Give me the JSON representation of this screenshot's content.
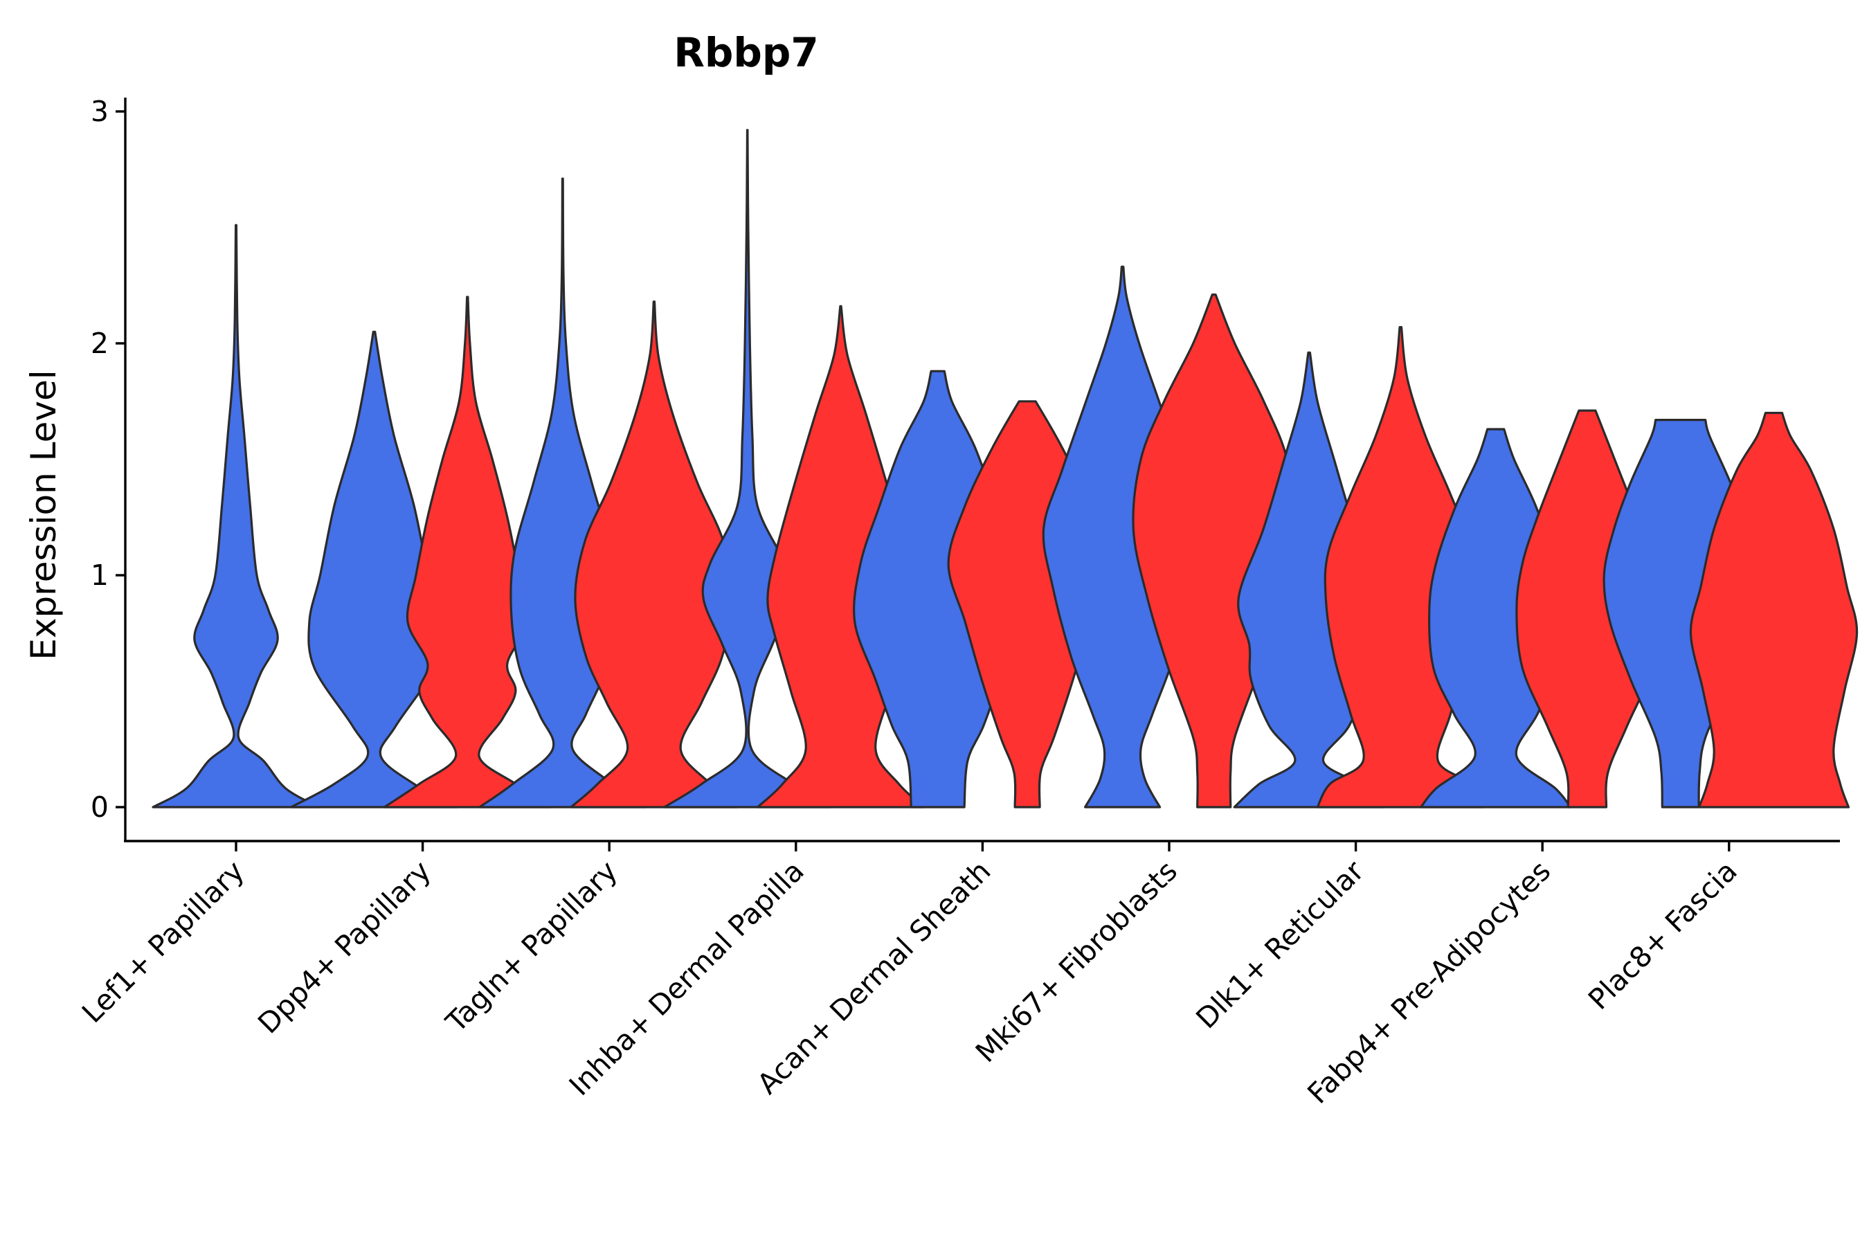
{
  "chart_data": {
    "type": "violin",
    "title": "Rbbp7",
    "xlabel": "",
    "ylabel": "Expression Level",
    "ylim": [
      -0.15,
      3.05
    ],
    "yticks": [
      "0",
      "1",
      "2",
      "3"
    ],
    "legend": "none",
    "colors": {
      "group_a": "#4470E8",
      "group_b": "#FF3232",
      "outline": "#2B2B2B"
    },
    "categories": [
      "Lef1+ Papillary",
      "Dpp4+ Papillary",
      "Tagln+ Papillary",
      "Inhba+ Dermal Papilla",
      "Acan+ Dermal Sheath",
      "Mki67+ Fibroblasts",
      "Dlk1+ Reticular",
      "Fabp4+ Pre-Adipocytes",
      "Plac8+ Fascia"
    ],
    "violins": [
      {
        "category_index": 0,
        "group": "group_a",
        "offset": 0,
        "max": 2.51,
        "profile": [
          [
            0,
            1.0
          ],
          [
            0.08,
            0.6
          ],
          [
            0.2,
            0.33
          ],
          [
            0.3,
            0.03
          ],
          [
            0.45,
            0.16
          ],
          [
            0.58,
            0.3
          ],
          [
            0.72,
            0.5
          ],
          [
            0.85,
            0.39
          ],
          [
            1.0,
            0.25
          ],
          [
            1.3,
            0.17
          ],
          [
            1.6,
            0.1
          ],
          [
            1.85,
            0.04
          ],
          [
            2.1,
            0.015
          ],
          [
            2.51,
            0.003
          ]
        ]
      },
      {
        "category_index": 1,
        "group": "group_a",
        "offset": -0.26,
        "max": 2.05,
        "profile": [
          [
            0,
            1.0
          ],
          [
            0.1,
            0.48
          ],
          [
            0.22,
            0.08
          ],
          [
            0.35,
            0.26
          ],
          [
            0.6,
            0.72
          ],
          [
            0.8,
            0.78
          ],
          [
            1.0,
            0.65
          ],
          [
            1.3,
            0.48
          ],
          [
            1.6,
            0.24
          ],
          [
            1.85,
            0.1
          ],
          [
            2.05,
            0.01
          ]
        ]
      },
      {
        "category_index": 1,
        "group": "group_b",
        "offset": 0.24,
        "max": 2.2,
        "profile": [
          [
            0,
            1.0
          ],
          [
            0.1,
            0.58
          ],
          [
            0.22,
            0.14
          ],
          [
            0.38,
            0.42
          ],
          [
            0.5,
            0.58
          ],
          [
            0.62,
            0.48
          ],
          [
            0.8,
            0.72
          ],
          [
            1.0,
            0.62
          ],
          [
            1.25,
            0.48
          ],
          [
            1.5,
            0.3
          ],
          [
            1.75,
            0.1
          ],
          [
            2.0,
            0.03
          ],
          [
            2.2,
            0.005
          ]
        ]
      },
      {
        "category_index": 2,
        "group": "group_a",
        "offset": -0.25,
        "max": 2.71,
        "profile": [
          [
            0,
            1.0
          ],
          [
            0.1,
            0.6
          ],
          [
            0.25,
            0.12
          ],
          [
            0.4,
            0.28
          ],
          [
            0.6,
            0.52
          ],
          [
            0.85,
            0.62
          ],
          [
            1.1,
            0.58
          ],
          [
            1.4,
            0.35
          ],
          [
            1.7,
            0.13
          ],
          [
            2.0,
            0.04
          ],
          [
            2.3,
            0.01
          ],
          [
            2.71,
            0.003
          ]
        ]
      },
      {
        "category_index": 2,
        "group": "group_b",
        "offset": 0.24,
        "max": 2.18,
        "profile": [
          [
            0,
            1.0
          ],
          [
            0.1,
            0.68
          ],
          [
            0.25,
            0.32
          ],
          [
            0.45,
            0.57
          ],
          [
            0.65,
            0.82
          ],
          [
            0.9,
            0.95
          ],
          [
            1.15,
            0.83
          ],
          [
            1.4,
            0.52
          ],
          [
            1.7,
            0.22
          ],
          [
            1.95,
            0.05
          ],
          [
            2.18,
            0.005
          ]
        ]
      },
      {
        "category_index": 3,
        "group": "group_a",
        "offset": -0.26,
        "max": 2.92,
        "profile": [
          [
            0,
            1.0
          ],
          [
            0.1,
            0.55
          ],
          [
            0.25,
            0.05
          ],
          [
            0.5,
            0.08
          ],
          [
            0.7,
            0.3
          ],
          [
            0.9,
            0.53
          ],
          [
            1.05,
            0.45
          ],
          [
            1.3,
            0.12
          ],
          [
            1.6,
            0.06
          ],
          [
            2.0,
            0.03
          ],
          [
            2.5,
            0.01
          ],
          [
            2.92,
            0.002
          ]
        ]
      },
      {
        "category_index": 3,
        "group": "group_b",
        "offset": 0.24,
        "max": 2.16,
        "profile": [
          [
            0,
            1.0
          ],
          [
            0.1,
            0.7
          ],
          [
            0.25,
            0.42
          ],
          [
            0.5,
            0.6
          ],
          [
            0.75,
            0.8
          ],
          [
            0.9,
            0.88
          ],
          [
            1.1,
            0.78
          ],
          [
            1.4,
            0.55
          ],
          [
            1.7,
            0.3
          ],
          [
            1.95,
            0.08
          ],
          [
            2.16,
            0.005
          ]
        ]
      },
      {
        "category_index": 4,
        "group": "group_a",
        "offset": -0.24,
        "max": 1.88,
        "profile": [
          [
            0,
            0.32
          ],
          [
            0.2,
            0.36
          ],
          [
            0.35,
            0.55
          ],
          [
            0.55,
            0.75
          ],
          [
            0.8,
            1.0
          ],
          [
            1.05,
            0.93
          ],
          [
            1.3,
            0.7
          ],
          [
            1.55,
            0.45
          ],
          [
            1.75,
            0.17
          ],
          [
            1.88,
            0.08
          ]
        ]
      },
      {
        "category_index": 4,
        "group": "group_b",
        "offset": 0.24,
        "max": 1.75,
        "profile": [
          [
            0,
            0.15
          ],
          [
            0.15,
            0.16
          ],
          [
            0.3,
            0.32
          ],
          [
            0.55,
            0.55
          ],
          [
            0.8,
            0.75
          ],
          [
            1.05,
            0.95
          ],
          [
            1.3,
            0.75
          ],
          [
            1.55,
            0.42
          ],
          [
            1.75,
            0.1
          ]
        ]
      },
      {
        "category_index": 5,
        "group": "group_a",
        "offset": -0.25,
        "max": 2.33,
        "profile": [
          [
            0,
            0.45
          ],
          [
            0.12,
            0.27
          ],
          [
            0.25,
            0.22
          ],
          [
            0.4,
            0.36
          ],
          [
            0.65,
            0.62
          ],
          [
            0.95,
            0.84
          ],
          [
            1.2,
            0.95
          ],
          [
            1.45,
            0.73
          ],
          [
            1.75,
            0.44
          ],
          [
            2.0,
            0.2
          ],
          [
            2.2,
            0.05
          ],
          [
            2.33,
            0.01
          ]
        ]
      },
      {
        "category_index": 5,
        "group": "group_b",
        "offset": 0.24,
        "max": 2.21,
        "profile": [
          [
            0,
            0.2
          ],
          [
            0.15,
            0.2
          ],
          [
            0.3,
            0.25
          ],
          [
            0.6,
            0.55
          ],
          [
            0.9,
            0.8
          ],
          [
            1.2,
            0.97
          ],
          [
            1.5,
            0.88
          ],
          [
            1.75,
            0.6
          ],
          [
            2.0,
            0.25
          ],
          [
            2.21,
            0.02
          ]
        ]
      },
      {
        "category_index": 6,
        "group": "group_a",
        "offset": -0.25,
        "max": 1.96,
        "profile": [
          [
            0,
            0.9
          ],
          [
            0.1,
            0.6
          ],
          [
            0.2,
            0.17
          ],
          [
            0.35,
            0.48
          ],
          [
            0.55,
            0.7
          ],
          [
            0.7,
            0.72
          ],
          [
            0.9,
            0.85
          ],
          [
            1.2,
            0.55
          ],
          [
            1.5,
            0.3
          ],
          [
            1.75,
            0.1
          ],
          [
            1.96,
            0.01
          ]
        ]
      },
      {
        "category_index": 6,
        "group": "group_b",
        "offset": 0.24,
        "max": 2.07,
        "profile": [
          [
            0,
            1.0
          ],
          [
            0.1,
            0.85
          ],
          [
            0.2,
            0.45
          ],
          [
            0.4,
            0.6
          ],
          [
            0.65,
            0.8
          ],
          [
            0.9,
            0.9
          ],
          [
            1.1,
            0.87
          ],
          [
            1.35,
            0.6
          ],
          [
            1.6,
            0.3
          ],
          [
            1.85,
            0.08
          ],
          [
            2.07,
            0.01
          ]
        ]
      },
      {
        "category_index": 7,
        "group": "group_a",
        "offset": -0.25,
        "max": 1.63,
        "profile": [
          [
            0,
            0.9
          ],
          [
            0.08,
            0.72
          ],
          [
            0.22,
            0.25
          ],
          [
            0.4,
            0.5
          ],
          [
            0.6,
            0.75
          ],
          [
            0.85,
            0.8
          ],
          [
            1.05,
            0.72
          ],
          [
            1.3,
            0.48
          ],
          [
            1.5,
            0.22
          ],
          [
            1.63,
            0.1
          ]
        ]
      },
      {
        "category_index": 7,
        "group": "group_b",
        "offset": 0.24,
        "max": 1.71,
        "profile": [
          [
            0,
            0.23
          ],
          [
            0.15,
            0.25
          ],
          [
            0.35,
            0.48
          ],
          [
            0.6,
            0.78
          ],
          [
            0.85,
            0.85
          ],
          [
            1.05,
            0.78
          ],
          [
            1.25,
            0.6
          ],
          [
            1.5,
            0.33
          ],
          [
            1.71,
            0.1
          ]
        ]
      },
      {
        "category_index": 8,
        "group": "group_a",
        "offset": -0.26,
        "max": 1.67,
        "profile": [
          [
            0,
            0.22
          ],
          [
            0.15,
            0.23
          ],
          [
            0.3,
            0.3
          ],
          [
            0.55,
            0.6
          ],
          [
            0.8,
            0.85
          ],
          [
            1.0,
            0.92
          ],
          [
            1.2,
            0.8
          ],
          [
            1.4,
            0.6
          ],
          [
            1.6,
            0.35
          ],
          [
            1.67,
            0.3
          ]
        ]
      },
      {
        "category_index": 8,
        "group": "group_b",
        "offset": 0.24,
        "max": 1.7,
        "profile": [
          [
            0,
            0.9
          ],
          [
            0.1,
            0.8
          ],
          [
            0.25,
            0.72
          ],
          [
            0.5,
            0.85
          ],
          [
            0.75,
            1.0
          ],
          [
            0.95,
            0.88
          ],
          [
            1.2,
            0.72
          ],
          [
            1.45,
            0.45
          ],
          [
            1.6,
            0.2
          ],
          [
            1.7,
            0.1
          ]
        ]
      }
    ]
  }
}
